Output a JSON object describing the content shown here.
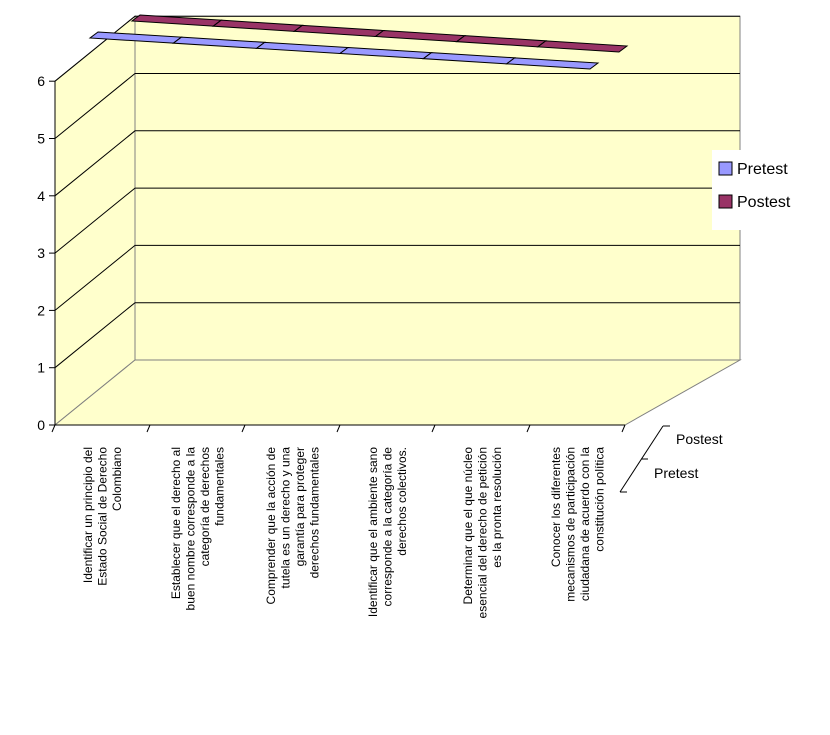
{
  "chart_data": {
    "type": "bar",
    "categories": [
      [
        "Identificar un principio del",
        "Estado Social de Derecho",
        "Colombiano"
      ],
      [
        "Establecer que el derecho al",
        "buen nombre corresponde a la",
        "categoría de derechos",
        "fundamentales"
      ],
      [
        "Comprender que la acción de",
        "tutela es un derecho y una",
        "garantía para proteger",
        "derechos fundamentales"
      ],
      [
        "Identificar que el ambiente sano",
        "corresponde a la categoría de",
        "derechos colectivos."
      ],
      [
        "Determinar que el que núcleo",
        "esencial del derecho de petición",
        "es la pronta resolución"
      ],
      [
        "Conocer los diferentes",
        "mecanismos de participación",
        "ciudadana de acuerdo con la",
        "constitución política"
      ]
    ],
    "series": [
      {
        "name": "Pretest",
        "values": [
          0,
          0,
          0,
          0,
          0,
          0
        ],
        "color": "#9999FF"
      },
      {
        "name": "Postest",
        "values": [
          0,
          0,
          0,
          0,
          0,
          0
        ],
        "color": "#993366"
      }
    ],
    "yticks": [
      "0",
      "1",
      "2",
      "3",
      "4",
      "5",
      "6"
    ],
    "ylim": [
      0,
      6
    ],
    "depth_labels": [
      "Postest",
      "Pretest"
    ],
    "legend_position": "right",
    "grid": true,
    "wall_color": "#FFFFCC",
    "floor_color": "#FFFFCC"
  }
}
